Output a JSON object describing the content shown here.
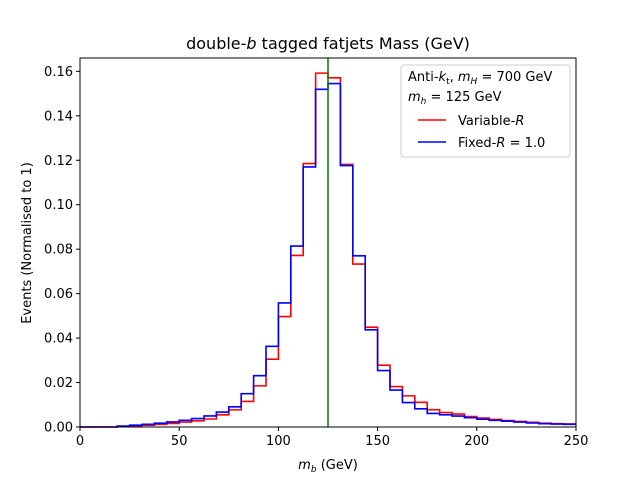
{
  "chart_data": {
    "type": "step-histogram",
    "title_parts": [
      "double-",
      "b",
      " tagged fatjets Mass (GeV)"
    ],
    "xlabel_parts": [
      "m",
      "b",
      " (GeV)"
    ],
    "ylabel": "Events (Normalised to 1)",
    "xlim": [
      0,
      250
    ],
    "ylim": [
      0,
      0.166
    ],
    "xticks": [
      0,
      50,
      100,
      150,
      200,
      250
    ],
    "xtick_labels": [
      "0",
      "50",
      "100",
      "150",
      "200",
      "250"
    ],
    "yticks": [
      0.0,
      0.02,
      0.04,
      0.06,
      0.08,
      0.1,
      0.12,
      0.14,
      0.16
    ],
    "ytick_labels": [
      "0.00",
      "0.02",
      "0.04",
      "0.06",
      "0.08",
      "0.10",
      "0.12",
      "0.14",
      "0.16"
    ],
    "grid": false,
    "bin_edges": [
      0,
      6.25,
      12.5,
      18.75,
      25,
      31.25,
      37.5,
      43.75,
      50,
      56.25,
      62.5,
      68.75,
      75,
      81.25,
      87.5,
      93.75,
      100,
      106.25,
      112.5,
      118.75,
      125,
      131.25,
      137.5,
      143.75,
      150,
      156.25,
      162.5,
      168.75,
      175,
      181.25,
      187.5,
      193.75,
      200,
      206.25,
      212.5,
      218.75,
      225,
      231.25,
      237.5,
      243.75,
      250
    ],
    "series": [
      {
        "name_parts": [
          "Variable-",
          "R"
        ],
        "color": "#ff0000",
        "values": [
          0.0,
          0.0,
          0.0,
          0.0002,
          0.0005,
          0.0008,
          0.0012,
          0.0016,
          0.0022,
          0.0028,
          0.0036,
          0.0055,
          0.0077,
          0.0115,
          0.0185,
          0.0305,
          0.0497,
          0.0772,
          0.1185,
          0.1592,
          0.1571,
          0.1181,
          0.0733,
          0.0449,
          0.0278,
          0.0182,
          0.014,
          0.0111,
          0.0078,
          0.0065,
          0.0058,
          0.0047,
          0.004,
          0.0034,
          0.0029,
          0.0025,
          0.0021,
          0.0017,
          0.0015,
          0.0014
        ]
      },
      {
        "name_parts": [
          "Fixed-",
          "R",
          " = 1.0"
        ],
        "color": "#0000ff",
        "values": [
          0.0,
          0.0,
          0.0,
          0.0004,
          0.0008,
          0.0012,
          0.0017,
          0.0023,
          0.003,
          0.0038,
          0.005,
          0.0067,
          0.0091,
          0.015,
          0.0231,
          0.0363,
          0.0558,
          0.0814,
          0.117,
          0.1519,
          0.1545,
          0.1176,
          0.077,
          0.0437,
          0.0254,
          0.0166,
          0.011,
          0.0082,
          0.0061,
          0.0055,
          0.0049,
          0.0042,
          0.0035,
          0.003,
          0.0026,
          0.0022,
          0.0018,
          0.0015,
          0.0013,
          0.0012
        ]
      }
    ],
    "vline": {
      "x": 125,
      "color": "#008000"
    },
    "legend_header": {
      "line1_parts": [
        "Anti-",
        "k",
        "t",
        ", ",
        "m",
        "H",
        " = 700 GeV"
      ],
      "line2_parts": [
        "m",
        "h",
        " = 125 GeV"
      ]
    },
    "legend_position": "top-right"
  }
}
